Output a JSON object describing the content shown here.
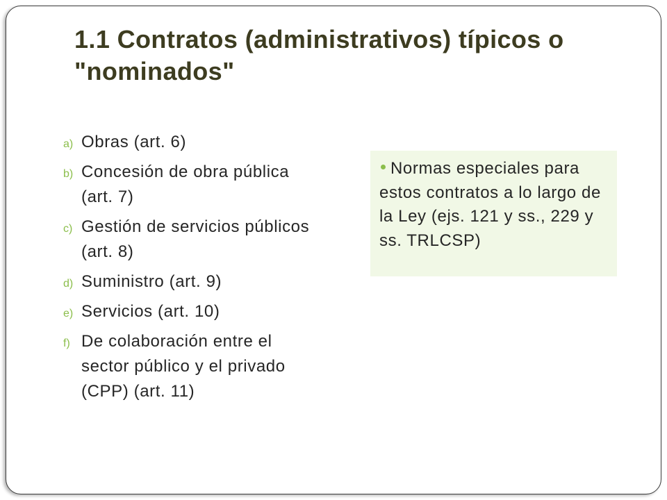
{
  "slide": {
    "title_lines": [
      "1.1 Contratos (administrativos) típicos o",
      "\"nominados\""
    ]
  },
  "list": {
    "items": [
      {
        "marker": "a)",
        "lines": [
          "Obras (art. 6)"
        ]
      },
      {
        "marker": "b)",
        "lines": [
          "Concesión de obra pública",
          "(art. 7)"
        ]
      },
      {
        "marker": "c)",
        "lines": [
          "Gestión de servicios públicos",
          "(art. 8)"
        ]
      },
      {
        "marker": "d)",
        "lines": [
          "Suministro (art. 9)"
        ]
      },
      {
        "marker": "e)",
        "lines": [
          "Servicios (art. 10)"
        ]
      },
      {
        "marker": "f)",
        "lines": [
          "De colaboración entre el",
          "sector público y el privado",
          "(CPP) (art. 11)"
        ]
      }
    ]
  },
  "note": {
    "bullet_icon": "bullet-dot-icon",
    "lines": [
      "Normas especiales para",
      "estos contratos a lo largo de",
      "la Ley (ejs. 121 y ss., 229 y",
      "ss. TRLCSP)"
    ]
  },
  "colors": {
    "accent": "#8bbe4b",
    "title": "#3d3c20",
    "text": "#262626",
    "note_bg": "#f1f8e6",
    "border": "#3b3b3b"
  }
}
